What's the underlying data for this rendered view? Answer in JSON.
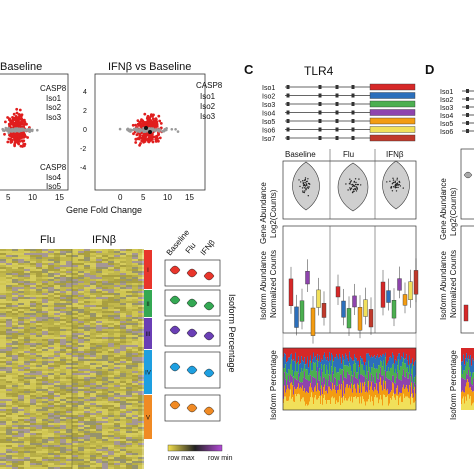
{
  "panel_letters": {
    "c": "C",
    "d": "D"
  },
  "scatter_left": {
    "title": "Baseline",
    "labels_top": [
      "CASP8",
      "Iso1",
      "Iso2",
      "Iso3"
    ],
    "labels_bottom": [
      "CASP8",
      "Iso4",
      "Iso5"
    ],
    "x_ticks": [
      "5",
      "10",
      "15"
    ]
  },
  "scatter_right": {
    "title": "IFNβ vs Baseline",
    "labels": [
      "CASP8",
      "Iso1",
      "Iso2",
      "Iso3"
    ],
    "y_ticks": [
      "4",
      "2",
      "0",
      "-2",
      "-4"
    ],
    "x_ticks": [
      "0",
      "5",
      "10",
      "15"
    ]
  },
  "shared_xlabel": "Gene Fold Change",
  "heatmap": {
    "col_labels": [
      "Flu",
      "IFNβ"
    ],
    "cluster_labels": [
      "I",
      "II",
      "III",
      "IV",
      "V"
    ],
    "cluster_colors": [
      "#e8352b",
      "#34a853",
      "#6a3fb5",
      "#1e9fe0",
      "#f08a24"
    ],
    "violin_cols": [
      "Baseline",
      "Flu",
      "IFNβ"
    ],
    "side_label": "Isoform Percentage",
    "legend": {
      "max": "row\nmax",
      "min": "row\nmin"
    }
  },
  "tlr4": {
    "title": "TLR4",
    "isoforms": [
      "Iso1",
      "Iso2",
      "Iso3",
      "Iso4",
      "Iso5",
      "Iso6",
      "Iso7"
    ],
    "iso_colors": [
      "#d62828",
      "#2c6fbb",
      "#4caf50",
      "#8e44ad",
      "#f39c12",
      "#f1e05a",
      "#c0392b"
    ],
    "conditions": [
      "Baseline",
      "Flu",
      "IFNβ"
    ],
    "ylabel_gene_1": "Gene Abundance",
    "ylabel_gene_2": "Log2(Counts)",
    "ylabel_iso_1": "Isoform Abundance",
    "ylabel_iso_2": "Normalized Counts",
    "ylabel_pct": "Isoform Percentage"
  },
  "panel_d": {
    "isoforms": [
      "Iso1",
      "Iso2",
      "Iso3",
      "Iso4",
      "Iso5",
      "Iso6"
    ],
    "ylabel_gene_1": "Gene Abundance",
    "ylabel_gene_2": "Log2(Counts)",
    "ylabel_iso_1": "Isoform Abundance",
    "ylabel_iso_2": "Normalized Counts",
    "ylabel_pct": "Isoform Percentage"
  }
}
